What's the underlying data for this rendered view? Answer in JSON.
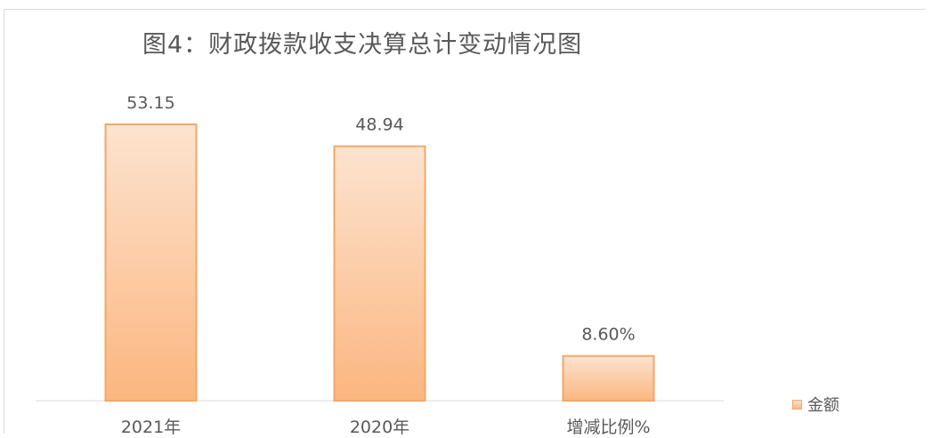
{
  "chart_data": {
    "type": "bar",
    "title": "图4：财政拨款收支决算总计变动情况图",
    "categories": [
      "2021年",
      "2020年",
      "增减比例%"
    ],
    "series": [
      {
        "name": "金额",
        "values": [
          53.15,
          48.94,
          8.6
        ],
        "labels": [
          "53.15",
          "48.94",
          "8.60%"
        ]
      }
    ],
    "ylim": [
      0,
      55
    ],
    "grid": false,
    "legend": "right",
    "colors": {
      "bar_top": "#fde3cf",
      "bar_bottom": "#fbb680",
      "bar_border": "#f0a868",
      "text": "#595959",
      "axis": "#d9d9d9"
    }
  }
}
